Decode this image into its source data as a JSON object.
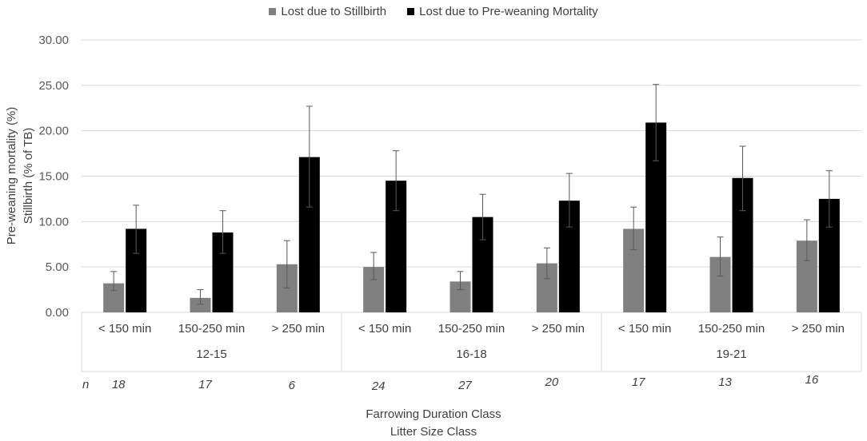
{
  "chart_data": {
    "type": "bar",
    "legend": [
      {
        "name": "Lost due to Stillbirth",
        "color": "#808080"
      },
      {
        "name": "Lost due to Pre-weaning Mortality",
        "color": "#000000"
      }
    ],
    "categories": [
      "< 150 min",
      "150-250 min",
      "> 250 min",
      "< 150 min",
      "150-250 min",
      "> 250 min",
      "< 150 min",
      "150-250 min",
      "> 250 min"
    ],
    "groups": [
      {
        "label": "12-15",
        "span": 3
      },
      {
        "label": "16-18",
        "span": 3
      },
      {
        "label": "19-21",
        "span": 3
      }
    ],
    "series": [
      {
        "name": "Lost due to Stillbirth",
        "color": "#808080",
        "values": [
          3.2,
          1.6,
          5.3,
          5.0,
          3.4,
          5.4,
          9.2,
          6.1,
          7.9
        ],
        "err_low": [
          2.4,
          0.9,
          2.7,
          3.6,
          2.5,
          3.7,
          6.9,
          4.0,
          5.7
        ],
        "err_high": [
          4.5,
          2.5,
          7.9,
          6.6,
          4.5,
          7.1,
          11.6,
          8.3,
          10.2
        ]
      },
      {
        "name": "Lost due to Pre-weaning Mortality",
        "color": "#000000",
        "values": [
          9.2,
          8.8,
          17.1,
          14.5,
          10.5,
          12.3,
          20.9,
          14.8,
          12.5
        ],
        "err_low": [
          6.5,
          6.5,
          11.6,
          11.2,
          8.0,
          9.4,
          16.7,
          11.2,
          9.4
        ],
        "err_high": [
          11.8,
          11.2,
          22.7,
          17.8,
          13.0,
          15.3,
          25.1,
          18.3,
          15.6
        ]
      }
    ],
    "n_label": "n",
    "n_values": [
      "18",
      "17",
      "6",
      "24",
      "27",
      "20",
      "17",
      "13",
      "16"
    ],
    "ylabel_line1": "Pre-weaning mortality (%)",
    "ylabel_line2": "Stillbirth (% of TB)",
    "xlabel_line1": "Farrowing Duration Class",
    "xlabel_line2": "Litter Size Class",
    "yticks": [
      "0.00",
      "5.00",
      "10.00",
      "15.00",
      "20.00",
      "25.00",
      "30.00"
    ],
    "ylim": [
      0,
      30
    ]
  }
}
